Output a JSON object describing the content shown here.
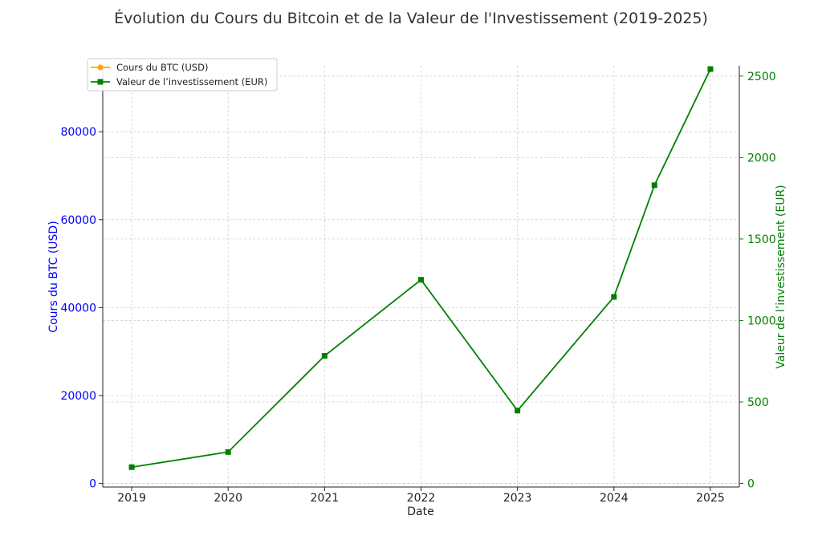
{
  "chart_data": {
    "type": "line",
    "title": "Évolution du Cours du Bitcoin et de la Valeur de l'Investissement (2019-2025)",
    "xlabel": "Date",
    "ylabel_left": "Cours du BTC (USD)",
    "ylabel_right": "Valeur de l’investissement (EUR)",
    "x_ticks": [
      "2019",
      "2020",
      "2021",
      "2022",
      "2023",
      "2024",
      "2025"
    ],
    "xlim": [
      2018.7,
      2025.3
    ],
    "ylim_left": [
      -800,
      95000
    ],
    "ylim_right": [
      -22,
      2563
    ],
    "y_ticks_left": [
      0,
      20000,
      40000,
      60000,
      80000
    ],
    "y_ticks_right": [
      0,
      500,
      1000,
      1500,
      2000,
      2500
    ],
    "grid": true,
    "legend_position": "upper-left",
    "series": [
      {
        "name": "Cours du BTC (USD)",
        "axis": "left",
        "color": "#ffa500",
        "marker": "circle",
        "x": [],
        "values": []
      },
      {
        "name": "Valeur de l’investissement (EUR)",
        "axis": "right",
        "color": "#008000",
        "marker": "square",
        "x": [
          2019.0,
          2020.0,
          2021.0,
          2022.0,
          2023.0,
          2024.0,
          2024.42,
          2025.0
        ],
        "values": [
          100,
          193,
          783,
          1250,
          447,
          1145,
          1830,
          2543
        ]
      }
    ]
  }
}
